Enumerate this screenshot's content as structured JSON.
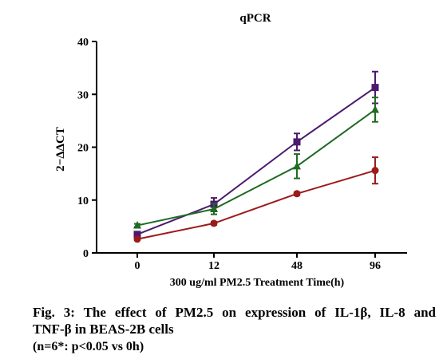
{
  "chart_data": {
    "type": "line",
    "title": "qPCR",
    "xlabel": "300 ug/ml PM2.5 Treatment Time(h)",
    "ylabel": "2−ΔΔCT",
    "categories": [
      "0",
      "12",
      "48",
      "96"
    ],
    "ylim": [
      0,
      40
    ],
    "yticks": [
      0,
      10,
      20,
      30,
      40
    ],
    "grid": false,
    "legend": "none",
    "series": [
      {
        "marker": "square",
        "color": "#4b1a6e",
        "values": [
          3.5,
          9.2,
          21.0,
          31.3
        ],
        "errors": [
          0.5,
          1.2,
          1.6,
          3.0
        ]
      },
      {
        "marker": "triangle",
        "color": "#1f6b22",
        "values": [
          5.2,
          8.3,
          16.4,
          27.1
        ],
        "errors": [
          0.3,
          1.0,
          2.3,
          2.3
        ]
      },
      {
        "marker": "circle",
        "color": "#9b1b1b",
        "values": [
          2.6,
          5.6,
          11.2,
          15.6
        ],
        "errors": [
          0.2,
          0.3,
          0.3,
          2.5
        ]
      }
    ]
  },
  "caption": {
    "line1": "Fig. 3: The effect of PM2.5 on expression of IL-1β, IL-8 and",
    "line2": "TNF-β in BEAS-2B cells",
    "line3": "(n=6*: p<0.05 vs 0h)"
  }
}
